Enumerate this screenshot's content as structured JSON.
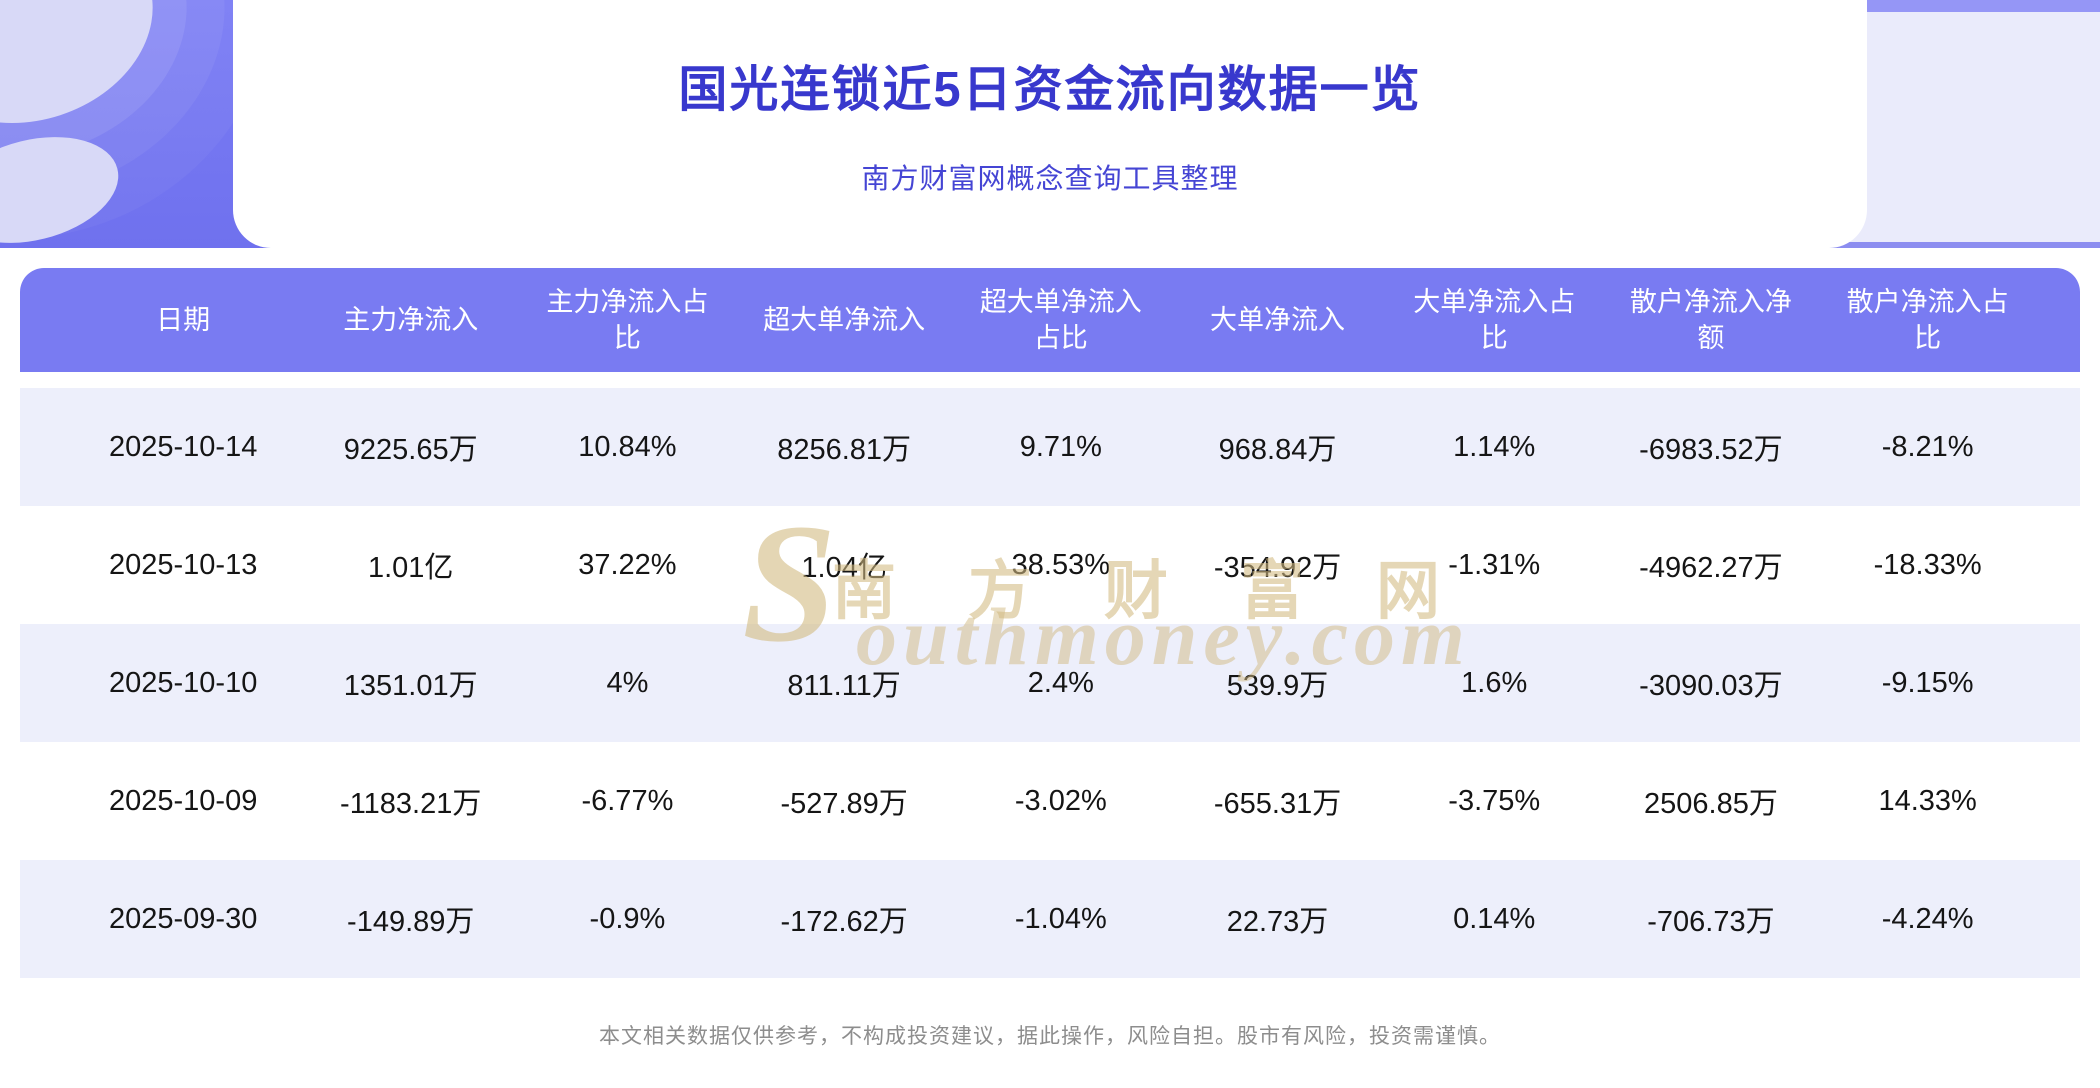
{
  "page": {
    "title": "国光连锁近5日资金流向数据一览",
    "subtitle": "南方财富网概念查询工具整理",
    "footer": "本文相关数据仅供参考，不构成投资建议，据此操作，风险自担。股市有风险，投资需谨慎。",
    "watermark_initial": "S",
    "watermark_cn": "南方财富网",
    "watermark_en": "outhmoney.com"
  },
  "colors": {
    "banner_purple": "#7378f0",
    "header_purple": "#797bf2",
    "row_alt": "#edeffb",
    "title_text": "#3838cd",
    "watermark_gold": "#d2ba82"
  },
  "table": {
    "headers": [
      "日期",
      "主力净流入",
      "主力净流入占比",
      "超大单净流入",
      "超大单净流入占比",
      "大单净流入",
      "大单净流入占比",
      "散户净流入净额",
      "散户净流入占比"
    ],
    "rows": [
      [
        "2025-10-14",
        "9225.65万",
        "10.84%",
        "8256.81万",
        "9.71%",
        "968.84万",
        "1.14%",
        "-6983.52万",
        "-8.21%"
      ],
      [
        "2025-10-13",
        "1.01亿",
        "37.22%",
        "1.04亿",
        "38.53%",
        "-354.92万",
        "-1.31%",
        "-4962.27万",
        "-18.33%"
      ],
      [
        "2025-10-10",
        "1351.01万",
        "4%",
        "811.11万",
        "2.4%",
        "539.9万",
        "1.6%",
        "-3090.03万",
        "-9.15%"
      ],
      [
        "2025-10-09",
        "-1183.21万",
        "-6.77%",
        "-527.89万",
        "-3.02%",
        "-655.31万",
        "-3.75%",
        "2506.85万",
        "14.33%"
      ],
      [
        "2025-09-30",
        "-149.89万",
        "-0.9%",
        "-172.62万",
        "-1.04%",
        "22.73万",
        "0.14%",
        "-706.73万",
        "-4.24%"
      ]
    ]
  },
  "chart_data": {
    "type": "table",
    "title": "国光连锁近5日资金流向数据一览",
    "columns": [
      "日期",
      "主力净流入",
      "主力净流入占比",
      "超大单净流入",
      "超大单净流入占比",
      "大单净流入",
      "大单净流入占比",
      "散户净流入净额",
      "散户净流入占比"
    ],
    "rows": [
      [
        "2025-10-14",
        "9225.65万",
        "10.84%",
        "8256.81万",
        "9.71%",
        "968.84万",
        "1.14%",
        "-6983.52万",
        "-8.21%"
      ],
      [
        "2025-10-13",
        "1.01亿",
        "37.22%",
        "1.04亿",
        "38.53%",
        "-354.92万",
        "-1.31%",
        "-4962.27万",
        "-18.33%"
      ],
      [
        "2025-10-10",
        "1351.01万",
        "4%",
        "811.11万",
        "2.4%",
        "539.9万",
        "1.6%",
        "-3090.03万",
        "-9.15%"
      ],
      [
        "2025-10-09",
        "-1183.21万",
        "-6.77%",
        "-527.89万",
        "-3.02%",
        "-655.31万",
        "-3.75%",
        "2506.85万",
        "14.33%"
      ],
      [
        "2025-09-30",
        "-149.89万",
        "-0.9%",
        "-172.62万",
        "-1.04%",
        "22.73万",
        "0.14%",
        "-706.73万",
        "-4.24%"
      ]
    ]
  }
}
